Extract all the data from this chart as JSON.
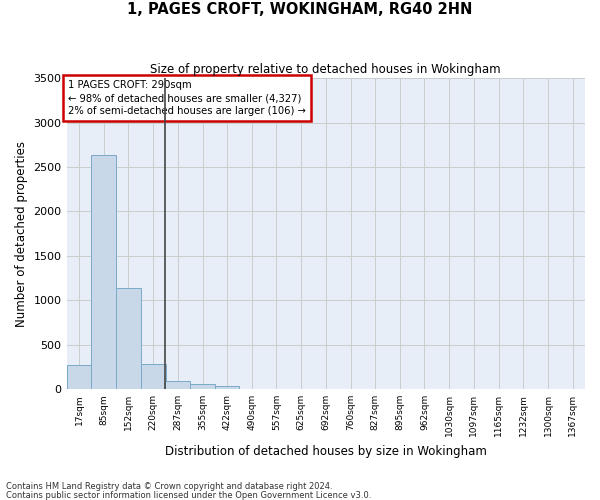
{
  "title": "1, PAGES CROFT, WOKINGHAM, RG40 2HN",
  "subtitle": "Size of property relative to detached houses in Wokingham",
  "xlabel": "Distribution of detached houses by size in Wokingham",
  "ylabel": "Number of detached properties",
  "bar_color": "#c8d8e8",
  "bar_edge_color": "#7aaac8",
  "grid_color": "#cccccc",
  "bg_color": "#e8eef8",
  "annotation_text": "1 PAGES CROFT: 290sqm\n← 98% of detached houses are smaller (4,327)\n2% of semi-detached houses are larger (106) →",
  "annotation_box_color": "#cc0000",
  "vline_x": 287,
  "vline_color": "#444444",
  "categories": [
    "17sqm",
    "85sqm",
    "152sqm",
    "220sqm",
    "287sqm",
    "355sqm",
    "422sqm",
    "490sqm",
    "557sqm",
    "625sqm",
    "692sqm",
    "760sqm",
    "827sqm",
    "895sqm",
    "962sqm",
    "1030sqm",
    "1097sqm",
    "1165sqm",
    "1232sqm",
    "1300sqm",
    "1367sqm"
  ],
  "bin_edges": [
    17,
    85,
    152,
    220,
    287,
    355,
    422,
    490,
    557,
    625,
    692,
    760,
    827,
    895,
    962,
    1030,
    1097,
    1165,
    1232,
    1300,
    1367,
    1435
  ],
  "values": [
    270,
    2640,
    1140,
    280,
    90,
    55,
    35,
    0,
    0,
    0,
    0,
    0,
    0,
    0,
    0,
    0,
    0,
    0,
    0,
    0,
    0
  ],
  "ylim": [
    0,
    3500
  ],
  "yticks": [
    0,
    500,
    1000,
    1500,
    2000,
    2500,
    3000,
    3500
  ],
  "footnote1": "Contains HM Land Registry data © Crown copyright and database right 2024.",
  "footnote2": "Contains public sector information licensed under the Open Government Licence v3.0."
}
